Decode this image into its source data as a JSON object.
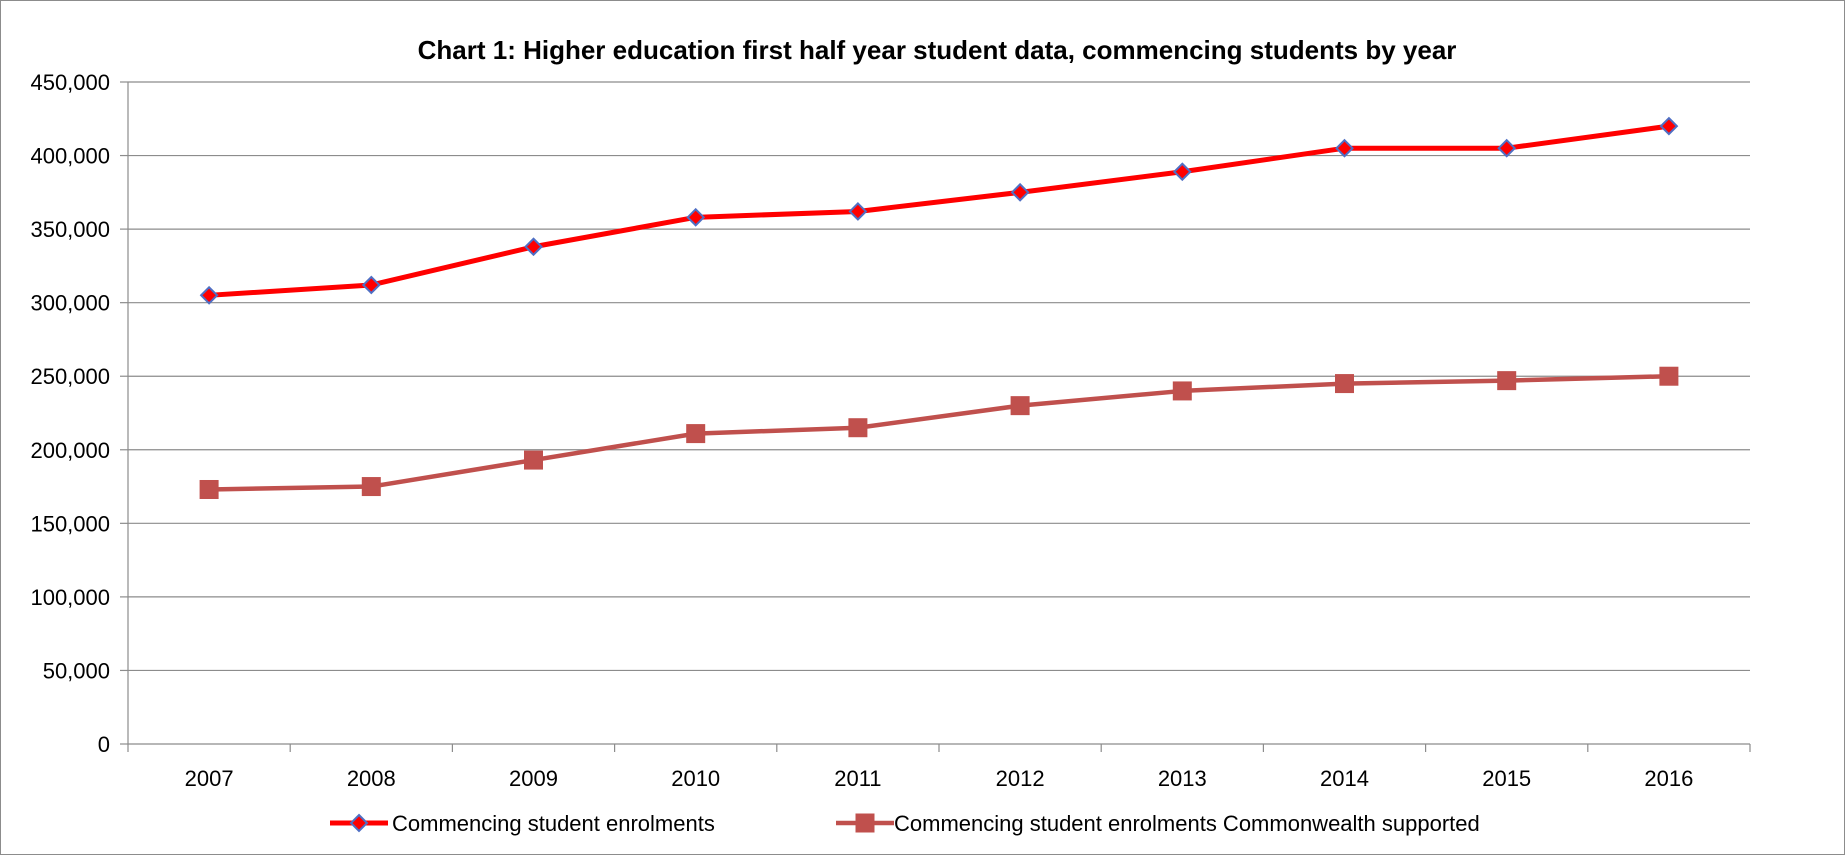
{
  "chart_data": {
    "type": "line",
    "title": "Chart 1: Higher education first half year student data, commencing students by year",
    "xlabel": "",
    "ylabel": "",
    "categories": [
      "2007",
      "2008",
      "2009",
      "2010",
      "2011",
      "2012",
      "2013",
      "2014",
      "2015",
      "2016"
    ],
    "ylim": [
      0,
      450000
    ],
    "yticks": [
      "0",
      "50,000",
      "100,000",
      "150,000",
      "200,000",
      "250,000",
      "300,000",
      "350,000",
      "400,000",
      "450,000"
    ],
    "grid": true,
    "legend_position": "bottom",
    "series": [
      {
        "name": "Commencing student enrolments",
        "values": [
          305000,
          312000,
          338000,
          358000,
          362000,
          375000,
          389000,
          405000,
          405000,
          420000
        ],
        "color": "#ff0000",
        "marker": "diamond",
        "marker_fill": "#ff0000",
        "marker_stroke": "#4f6fc4"
      },
      {
        "name": "Commencing student enrolments Commonwealth supported",
        "values": [
          173000,
          175000,
          193000,
          211000,
          215000,
          230000,
          240000,
          245000,
          247000,
          250000
        ],
        "color": "#c0504d",
        "marker": "square",
        "marker_fill": "#c0504d",
        "marker_stroke": "#c0504d"
      }
    ]
  }
}
